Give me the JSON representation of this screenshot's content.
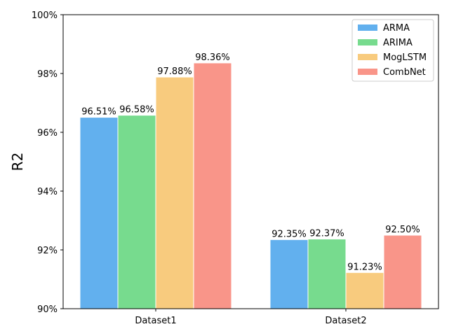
{
  "chart_data": {
    "type": "bar",
    "title": "",
    "xlabel": "",
    "ylabel": "R2",
    "categories": [
      "Dataset1",
      "Dataset2"
    ],
    "ylim": [
      90,
      100
    ],
    "yticks": [
      90,
      92,
      94,
      96,
      98,
      100
    ],
    "ytick_labels": [
      "90%",
      "92%",
      "94%",
      "96%",
      "98%",
      "100%"
    ],
    "grid": false,
    "legend_position": "top-right",
    "series": [
      {
        "name": "ARMA",
        "color": "#62b0ee",
        "values": [
          96.51,
          92.35
        ],
        "labels": [
          "96.51%",
          "92.35%"
        ]
      },
      {
        "name": "ARIMA",
        "color": "#77db8e",
        "values": [
          96.58,
          92.37
        ],
        "labels": [
          "96.58%",
          "92.37%"
        ]
      },
      {
        "name": "MogLSTM",
        "color": "#f8cb7e",
        "values": [
          97.88,
          91.23
        ],
        "labels": [
          "97.88%",
          "91.23%"
        ]
      },
      {
        "name": "CombNet",
        "color": "#f99589",
        "values": [
          98.36,
          92.5
        ],
        "labels": [
          "98.36%",
          "92.50%"
        ]
      }
    ]
  }
}
